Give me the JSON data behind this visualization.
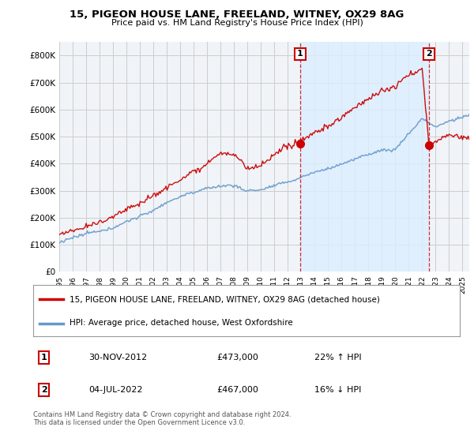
{
  "title": "15, PIGEON HOUSE LANE, FREELAND, WITNEY, OX29 8AG",
  "subtitle": "Price paid vs. HM Land Registry's House Price Index (HPI)",
  "legend_line1": "15, PIGEON HOUSE LANE, FREELAND, WITNEY, OX29 8AG (detached house)",
  "legend_line2": "HPI: Average price, detached house, West Oxfordshire",
  "annotation1_date": "30-NOV-2012",
  "annotation1_price": "£473,000",
  "annotation1_hpi": "22% ↑ HPI",
  "annotation2_date": "04-JUL-2022",
  "annotation2_price": "£467,000",
  "annotation2_hpi": "16% ↓ HPI",
  "footer": "Contains HM Land Registry data © Crown copyright and database right 2024.\nThis data is licensed under the Open Government Licence v3.0.",
  "red_color": "#cc0000",
  "blue_color": "#6699cc",
  "shade_color": "#ddeeff",
  "vline_color": "#cc0000",
  "background_color": "#ffffff",
  "plot_bg_color": "#f0f4f8",
  "grid_color": "#cccccc",
  "ylim": [
    0,
    850000
  ],
  "yticks": [
    0,
    100000,
    200000,
    300000,
    400000,
    500000,
    600000,
    700000,
    800000
  ],
  "ytick_labels": [
    "£0",
    "£100K",
    "£200K",
    "£300K",
    "£400K",
    "£500K",
    "£600K",
    "£700K",
    "£800K"
  ],
  "sale1_year": 2012.92,
  "sale1_price": 473000,
  "sale2_year": 2022.5,
  "sale2_price": 467000,
  "xlim_left": 1995.0,
  "xlim_right": 2025.5
}
